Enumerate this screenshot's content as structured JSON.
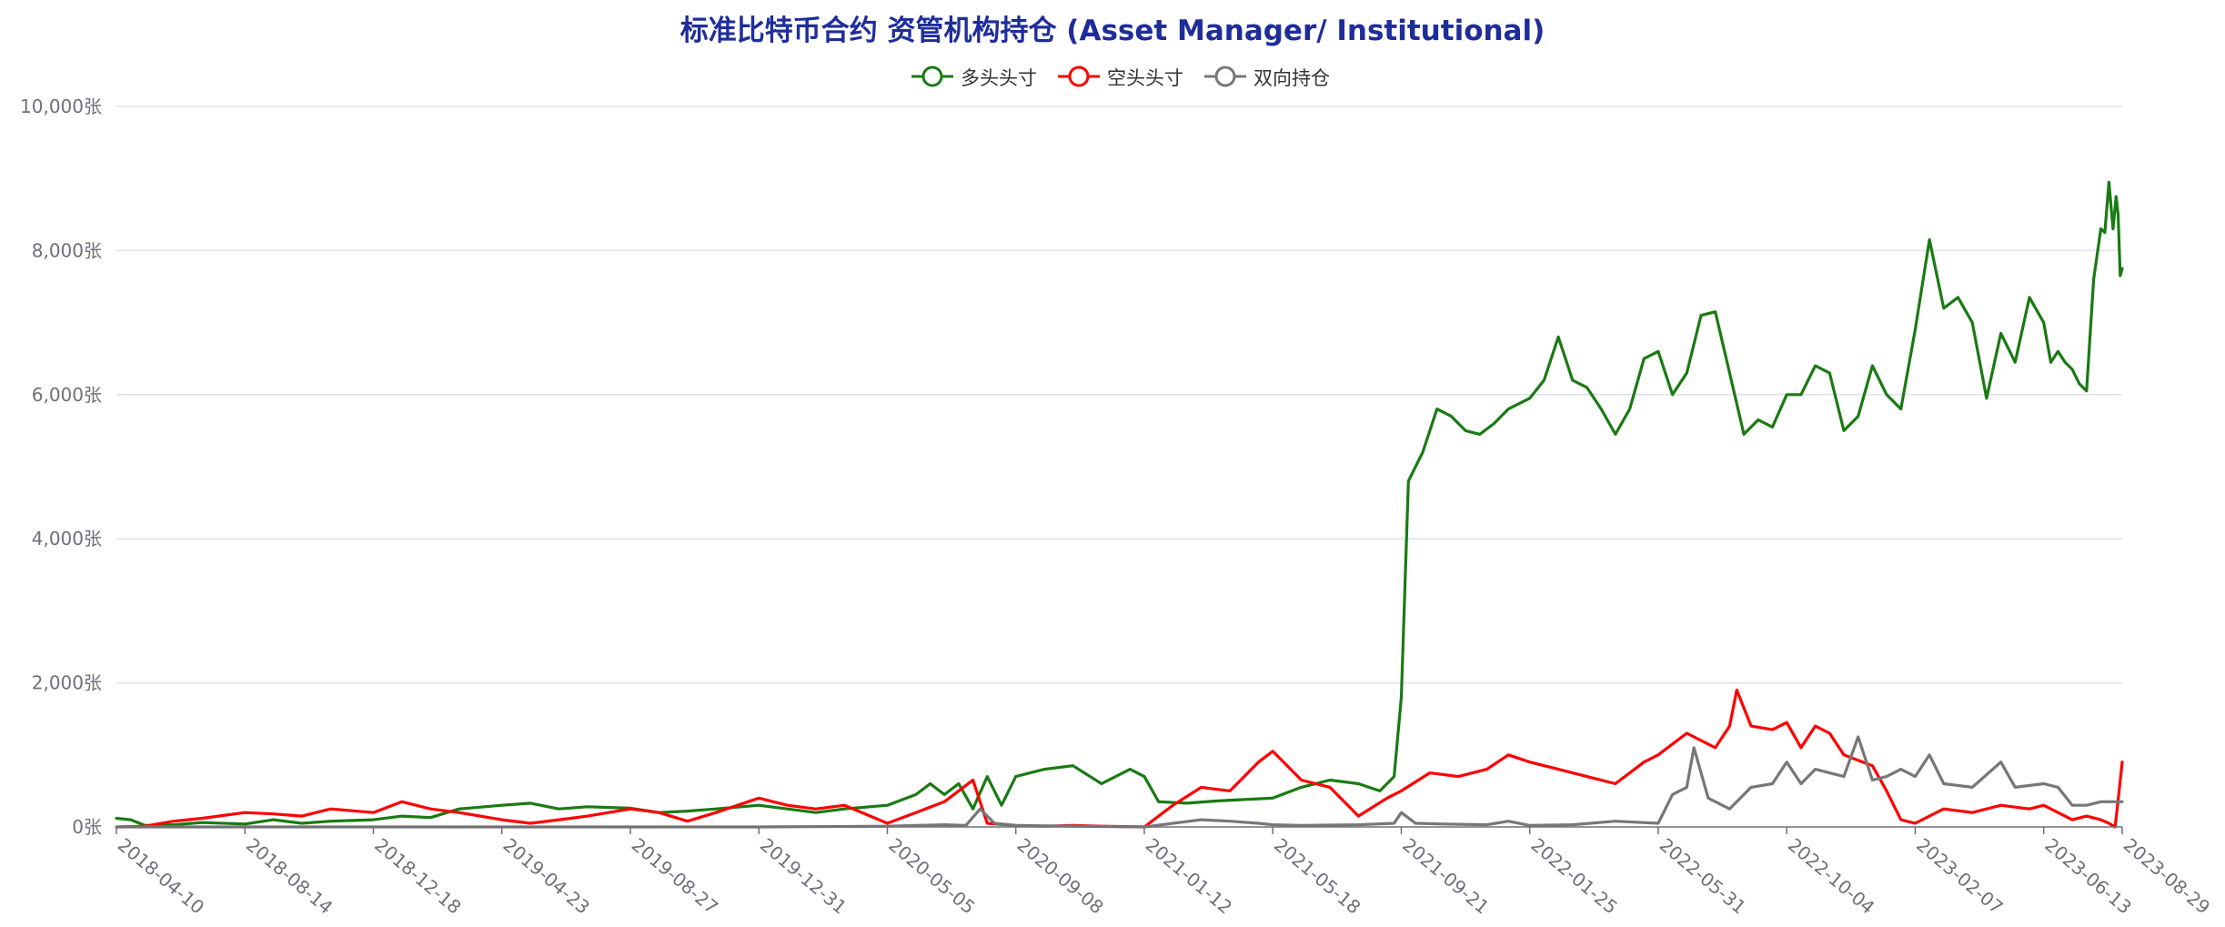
{
  "colors": {
    "long": "#1a7a12",
    "short": "#ff0000",
    "spread": "#777777",
    "title": "#1f2d9b",
    "grid": "#dfe1f0",
    "axis": "#6e7079"
  },
  "chart_data": {
    "type": "line",
    "title": "标准比特币合约 资管机构持仓 (Asset Manager/ Institutional)",
    "legend_position": "top-center",
    "grid": true,
    "ylim": [
      0,
      10000
    ],
    "y_ticks": [
      "0张",
      "2,000张",
      "4,000张",
      "6,000张",
      "8,000张",
      "10,000张"
    ],
    "y_tick_values": [
      0,
      2000,
      4000,
      6000,
      8000,
      10000
    ],
    "x_range": [
      "2018-04-10",
      "2023-08-29"
    ],
    "x_ticks": [
      "2018-04-10",
      "2018-08-14",
      "2018-12-18",
      "2019-04-23",
      "2019-08-27",
      "2019-12-31",
      "2020-05-05",
      "2020-09-08",
      "2021-01-12",
      "2021-05-18",
      "2021-09-21",
      "2022-01-25",
      "2022-05-31",
      "2022-10-04",
      "2023-02-07",
      "2023-06-13",
      "2023-08-29"
    ],
    "series": [
      {
        "name": "多头头寸",
        "color_key": "long",
        "points": [
          [
            "2018-04-10",
            120
          ],
          [
            "2018-04-24",
            100
          ],
          [
            "2018-05-08",
            20
          ],
          [
            "2018-06-05",
            30
          ],
          [
            "2018-07-03",
            60
          ],
          [
            "2018-08-14",
            40
          ],
          [
            "2018-09-11",
            100
          ],
          [
            "2018-10-09",
            50
          ],
          [
            "2018-11-06",
            80
          ],
          [
            "2018-12-18",
            100
          ],
          [
            "2019-01-15",
            150
          ],
          [
            "2019-02-12",
            130
          ],
          [
            "2019-03-12",
            250
          ],
          [
            "2019-04-23",
            300
          ],
          [
            "2019-05-21",
            330
          ],
          [
            "2019-06-18",
            250
          ],
          [
            "2019-07-16",
            280
          ],
          [
            "2019-08-27",
            260
          ],
          [
            "2019-09-24",
            200
          ],
          [
            "2019-10-22",
            220
          ],
          [
            "2019-11-19",
            250
          ],
          [
            "2019-12-31",
            300
          ],
          [
            "2020-01-28",
            250
          ],
          [
            "2020-02-25",
            200
          ],
          [
            "2020-03-24",
            250
          ],
          [
            "2020-05-05",
            300
          ],
          [
            "2020-06-02",
            450
          ],
          [
            "2020-06-16",
            600
          ],
          [
            "2020-06-30",
            450
          ],
          [
            "2020-07-14",
            600
          ],
          [
            "2020-07-28",
            250
          ],
          [
            "2020-08-11",
            700
          ],
          [
            "2020-08-25",
            300
          ],
          [
            "2020-09-08",
            700
          ],
          [
            "2020-10-06",
            800
          ],
          [
            "2020-11-03",
            850
          ],
          [
            "2020-12-01",
            600
          ],
          [
            "2020-12-29",
            800
          ],
          [
            "2021-01-12",
            700
          ],
          [
            "2021-01-26",
            350
          ],
          [
            "2021-02-23",
            330
          ],
          [
            "2021-03-23",
            360
          ],
          [
            "2021-04-20",
            380
          ],
          [
            "2021-05-18",
            400
          ],
          [
            "2021-06-15",
            550
          ],
          [
            "2021-07-13",
            650
          ],
          [
            "2021-08-10",
            600
          ],
          [
            "2021-08-31",
            500
          ],
          [
            "2021-09-14",
            700
          ],
          [
            "2021-09-21",
            1800
          ],
          [
            "2021-09-28",
            4800
          ],
          [
            "2021-10-12",
            5200
          ],
          [
            "2021-10-26",
            5800
          ],
          [
            "2021-11-09",
            5700
          ],
          [
            "2021-11-23",
            5500
          ],
          [
            "2021-12-07",
            5450
          ],
          [
            "2021-12-21",
            5600
          ],
          [
            "2022-01-04",
            5800
          ],
          [
            "2022-01-25",
            5950
          ],
          [
            "2022-02-08",
            6200
          ],
          [
            "2022-02-22",
            6800
          ],
          [
            "2022-03-08",
            6200
          ],
          [
            "2022-03-22",
            6100
          ],
          [
            "2022-04-05",
            5800
          ],
          [
            "2022-04-19",
            5450
          ],
          [
            "2022-05-03",
            5800
          ],
          [
            "2022-05-17",
            6500
          ],
          [
            "2022-05-31",
            6600
          ],
          [
            "2022-06-14",
            6000
          ],
          [
            "2022-06-28",
            6300
          ],
          [
            "2022-07-12",
            7100
          ],
          [
            "2022-07-26",
            7150
          ],
          [
            "2022-08-09",
            6300
          ],
          [
            "2022-08-23",
            5450
          ],
          [
            "2022-09-06",
            5650
          ],
          [
            "2022-09-20",
            5550
          ],
          [
            "2022-10-04",
            6000
          ],
          [
            "2022-10-18",
            6000
          ],
          [
            "2022-11-01",
            6400
          ],
          [
            "2022-11-15",
            6300
          ],
          [
            "2022-11-29",
            5500
          ],
          [
            "2022-12-13",
            5700
          ],
          [
            "2022-12-27",
            6400
          ],
          [
            "2023-01-10",
            6000
          ],
          [
            "2023-01-24",
            5800
          ],
          [
            "2023-02-07",
            6900
          ],
          [
            "2023-02-21",
            8150
          ],
          [
            "2023-03-07",
            7200
          ],
          [
            "2023-03-21",
            7350
          ],
          [
            "2023-04-04",
            7000
          ],
          [
            "2023-04-18",
            5950
          ],
          [
            "2023-05-02",
            6850
          ],
          [
            "2023-05-16",
            6450
          ],
          [
            "2023-05-30",
            7350
          ],
          [
            "2023-06-13",
            7000
          ],
          [
            "2023-06-20",
            6450
          ],
          [
            "2023-06-27",
            6600
          ],
          [
            "2023-07-04",
            6450
          ],
          [
            "2023-07-11",
            6350
          ],
          [
            "2023-07-18",
            6150
          ],
          [
            "2023-07-25",
            6050
          ],
          [
            "2023-08-01",
            7600
          ],
          [
            "2023-08-08",
            8300
          ],
          [
            "2023-08-12",
            8250
          ],
          [
            "2023-08-16",
            8950
          ],
          [
            "2023-08-20",
            8300
          ],
          [
            "2023-08-23",
            8750
          ],
          [
            "2023-08-25",
            8500
          ],
          [
            "2023-08-27",
            7650
          ],
          [
            "2023-08-29",
            7750
          ]
        ]
      },
      {
        "name": "空头头寸",
        "color_key": "short",
        "points": [
          [
            "2018-04-10",
            0
          ],
          [
            "2018-05-08",
            10
          ],
          [
            "2018-06-05",
            80
          ],
          [
            "2018-07-03",
            120
          ],
          [
            "2018-08-14",
            200
          ],
          [
            "2018-09-11",
            180
          ],
          [
            "2018-10-09",
            150
          ],
          [
            "2018-11-06",
            250
          ],
          [
            "2018-12-18",
            200
          ],
          [
            "2019-01-15",
            350
          ],
          [
            "2019-02-12",
            250
          ],
          [
            "2019-03-12",
            200
          ],
          [
            "2019-04-23",
            100
          ],
          [
            "2019-05-21",
            50
          ],
          [
            "2019-06-18",
            100
          ],
          [
            "2019-07-16",
            150
          ],
          [
            "2019-08-27",
            250
          ],
          [
            "2019-09-24",
            200
          ],
          [
            "2019-10-22",
            80
          ],
          [
            "2019-11-19",
            200
          ],
          [
            "2019-12-31",
            400
          ],
          [
            "2020-01-28",
            300
          ],
          [
            "2020-02-25",
            250
          ],
          [
            "2020-03-24",
            300
          ],
          [
            "2020-05-05",
            50
          ],
          [
            "2020-06-02",
            200
          ],
          [
            "2020-06-30",
            350
          ],
          [
            "2020-07-28",
            650
          ],
          [
            "2020-08-11",
            50
          ],
          [
            "2020-09-08",
            20
          ],
          [
            "2020-10-06",
            10
          ],
          [
            "2020-11-03",
            20
          ],
          [
            "2020-12-01",
            10
          ],
          [
            "2021-01-12",
            0
          ],
          [
            "2021-02-09",
            300
          ],
          [
            "2021-03-09",
            550
          ],
          [
            "2021-04-06",
            500
          ],
          [
            "2021-05-04",
            900
          ],
          [
            "2021-05-18",
            1050
          ],
          [
            "2021-06-15",
            650
          ],
          [
            "2021-07-13",
            550
          ],
          [
            "2021-08-10",
            150
          ],
          [
            "2021-09-07",
            400
          ],
          [
            "2021-09-21",
            500
          ],
          [
            "2021-10-19",
            750
          ],
          [
            "2021-11-16",
            700
          ],
          [
            "2021-12-14",
            800
          ],
          [
            "2022-01-04",
            1000
          ],
          [
            "2022-01-25",
            900
          ],
          [
            "2022-02-22",
            800
          ],
          [
            "2022-03-22",
            700
          ],
          [
            "2022-04-19",
            600
          ],
          [
            "2022-05-17",
            900
          ],
          [
            "2022-05-31",
            1000
          ],
          [
            "2022-06-28",
            1300
          ],
          [
            "2022-07-26",
            1100
          ],
          [
            "2022-08-09",
            1400
          ],
          [
            "2022-08-16",
            1900
          ],
          [
            "2022-08-30",
            1400
          ],
          [
            "2022-09-20",
            1350
          ],
          [
            "2022-10-04",
            1450
          ],
          [
            "2022-10-18",
            1100
          ],
          [
            "2022-11-01",
            1400
          ],
          [
            "2022-11-15",
            1300
          ],
          [
            "2022-11-29",
            1000
          ],
          [
            "2022-12-27",
            850
          ],
          [
            "2023-01-10",
            500
          ],
          [
            "2023-01-24",
            100
          ],
          [
            "2023-02-07",
            50
          ],
          [
            "2023-03-07",
            250
          ],
          [
            "2023-04-04",
            200
          ],
          [
            "2023-05-02",
            300
          ],
          [
            "2023-05-30",
            250
          ],
          [
            "2023-06-13",
            300
          ],
          [
            "2023-06-27",
            200
          ],
          [
            "2023-07-11",
            100
          ],
          [
            "2023-07-25",
            150
          ],
          [
            "2023-08-08",
            100
          ],
          [
            "2023-08-16",
            50
          ],
          [
            "2023-08-22",
            0
          ],
          [
            "2023-08-26",
            500
          ],
          [
            "2023-08-29",
            900
          ]
        ]
      },
      {
        "name": "双向持仓",
        "color_key": "spread",
        "points": [
          [
            "2018-04-10",
            0
          ],
          [
            "2018-12-18",
            0
          ],
          [
            "2019-04-23",
            0
          ],
          [
            "2019-08-27",
            0
          ],
          [
            "2019-12-31",
            0
          ],
          [
            "2020-05-05",
            10
          ],
          [
            "2020-06-30",
            30
          ],
          [
            "2020-07-21",
            20
          ],
          [
            "2020-08-04",
            250
          ],
          [
            "2020-08-18",
            50
          ],
          [
            "2020-09-08",
            20
          ],
          [
            "2020-11-03",
            10
          ],
          [
            "2021-01-12",
            0
          ],
          [
            "2021-03-09",
            100
          ],
          [
            "2021-04-06",
            80
          ],
          [
            "2021-05-04",
            50
          ],
          [
            "2021-05-18",
            30
          ],
          [
            "2021-06-15",
            20
          ],
          [
            "2021-08-10",
            30
          ],
          [
            "2021-09-14",
            50
          ],
          [
            "2021-09-21",
            200
          ],
          [
            "2021-10-05",
            50
          ],
          [
            "2021-11-02",
            40
          ],
          [
            "2021-12-14",
            30
          ],
          [
            "2022-01-04",
            80
          ],
          [
            "2022-01-25",
            20
          ],
          [
            "2022-03-08",
            30
          ],
          [
            "2022-04-19",
            80
          ],
          [
            "2022-05-31",
            50
          ],
          [
            "2022-06-14",
            450
          ],
          [
            "2022-06-28",
            550
          ],
          [
            "2022-07-05",
            1100
          ],
          [
            "2022-07-19",
            400
          ],
          [
            "2022-08-09",
            250
          ],
          [
            "2022-08-30",
            550
          ],
          [
            "2022-09-20",
            600
          ],
          [
            "2022-10-04",
            900
          ],
          [
            "2022-10-18",
            600
          ],
          [
            "2022-11-01",
            800
          ],
          [
            "2022-11-29",
            700
          ],
          [
            "2022-12-13",
            1250
          ],
          [
            "2022-12-27",
            650
          ],
          [
            "2023-01-10",
            700
          ],
          [
            "2023-01-24",
            800
          ],
          [
            "2023-02-07",
            700
          ],
          [
            "2023-02-21",
            1000
          ],
          [
            "2023-03-07",
            600
          ],
          [
            "2023-04-04",
            550
          ],
          [
            "2023-05-02",
            900
          ],
          [
            "2023-05-16",
            550
          ],
          [
            "2023-06-13",
            600
          ],
          [
            "2023-06-27",
            550
          ],
          [
            "2023-07-11",
            300
          ],
          [
            "2023-07-25",
            300
          ],
          [
            "2023-08-08",
            350
          ],
          [
            "2023-08-22",
            350
          ],
          [
            "2023-08-29",
            350
          ]
        ]
      }
    ]
  }
}
